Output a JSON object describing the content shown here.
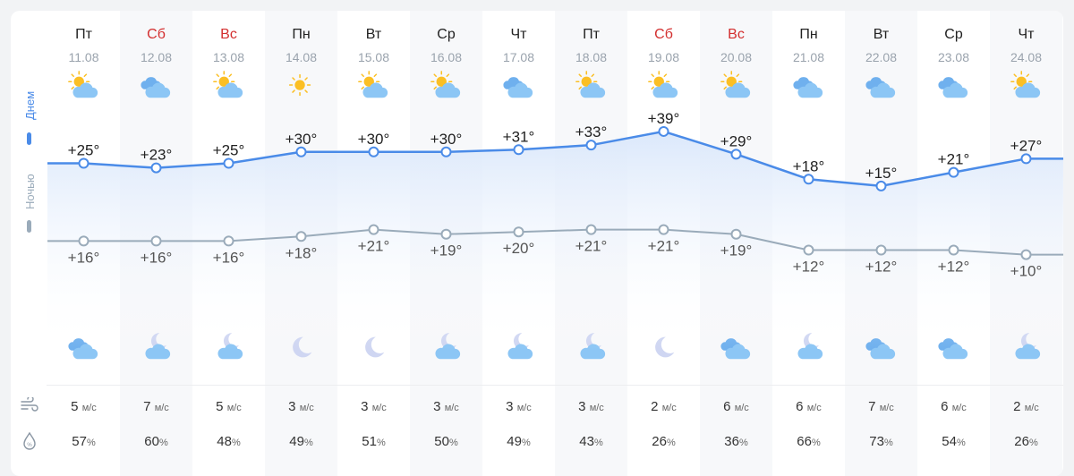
{
  "labels": {
    "day": "Днем",
    "night": "Ночью"
  },
  "colors": {
    "day_line": "#4a8be8",
    "night_line": "#9aabba",
    "weekend": "#d32f2f",
    "fill": "#dbe8fb"
  },
  "days": [
    {
      "name": "Пт",
      "date": "11.08",
      "weekend": false,
      "day_icon": "sun-cloud",
      "night_icon": "clouds",
      "wind": "5",
      "humidity": "57"
    },
    {
      "name": "Сб",
      "date": "12.08",
      "weekend": true,
      "day_icon": "clouds",
      "night_icon": "moon-cloud",
      "wind": "7",
      "humidity": "60"
    },
    {
      "name": "Вс",
      "date": "13.08",
      "weekend": true,
      "day_icon": "sun-cloud",
      "night_icon": "moon-cloud",
      "wind": "5",
      "humidity": "48"
    },
    {
      "name": "Пн",
      "date": "14.08",
      "weekend": false,
      "day_icon": "sun",
      "night_icon": "moon",
      "wind": "3",
      "humidity": "49"
    },
    {
      "name": "Вт",
      "date": "15.08",
      "weekend": false,
      "day_icon": "sun-cloud",
      "night_icon": "moon",
      "wind": "3",
      "humidity": "51"
    },
    {
      "name": "Ср",
      "date": "16.08",
      "weekend": false,
      "day_icon": "sun-cloud",
      "night_icon": "moon-cloud",
      "wind": "3",
      "humidity": "50"
    },
    {
      "name": "Чт",
      "date": "17.08",
      "weekend": false,
      "day_icon": "clouds",
      "night_icon": "moon-cloud",
      "wind": "3",
      "humidity": "49"
    },
    {
      "name": "Пт",
      "date": "18.08",
      "weekend": false,
      "day_icon": "sun-cloud",
      "night_icon": "moon-cloud",
      "wind": "3",
      "humidity": "43"
    },
    {
      "name": "Сб",
      "date": "19.08",
      "weekend": true,
      "day_icon": "sun-cloud",
      "night_icon": "moon",
      "wind": "2",
      "humidity": "26"
    },
    {
      "name": "Вс",
      "date": "20.08",
      "weekend": true,
      "day_icon": "sun-cloud",
      "night_icon": "clouds",
      "wind": "6",
      "humidity": "36"
    },
    {
      "name": "Пн",
      "date": "21.08",
      "weekend": false,
      "day_icon": "clouds",
      "night_icon": "moon-cloud",
      "wind": "6",
      "humidity": "66"
    },
    {
      "name": "Вт",
      "date": "22.08",
      "weekend": false,
      "day_icon": "clouds",
      "night_icon": "clouds",
      "wind": "7",
      "humidity": "73"
    },
    {
      "name": "Ср",
      "date": "23.08",
      "weekend": false,
      "day_icon": "clouds",
      "night_icon": "clouds",
      "wind": "6",
      "humidity": "54"
    },
    {
      "name": "Чт",
      "date": "24.08",
      "weekend": false,
      "day_icon": "sun-cloud",
      "night_icon": "moon-cloud",
      "wind": "2",
      "humidity": "26"
    }
  ],
  "day_temps": [
    25,
    23,
    25,
    30,
    30,
    30,
    31,
    33,
    39,
    29,
    18,
    15,
    21,
    27
  ],
  "night_temps": [
    16,
    16,
    16,
    18,
    21,
    19,
    20,
    21,
    21,
    19,
    12,
    12,
    12,
    10
  ],
  "wind_unit": "м/с",
  "humidity_unit": "%",
  "icons": {
    "wind": "wind-icon",
    "humidity": "humidity-drop-icon"
  }
}
